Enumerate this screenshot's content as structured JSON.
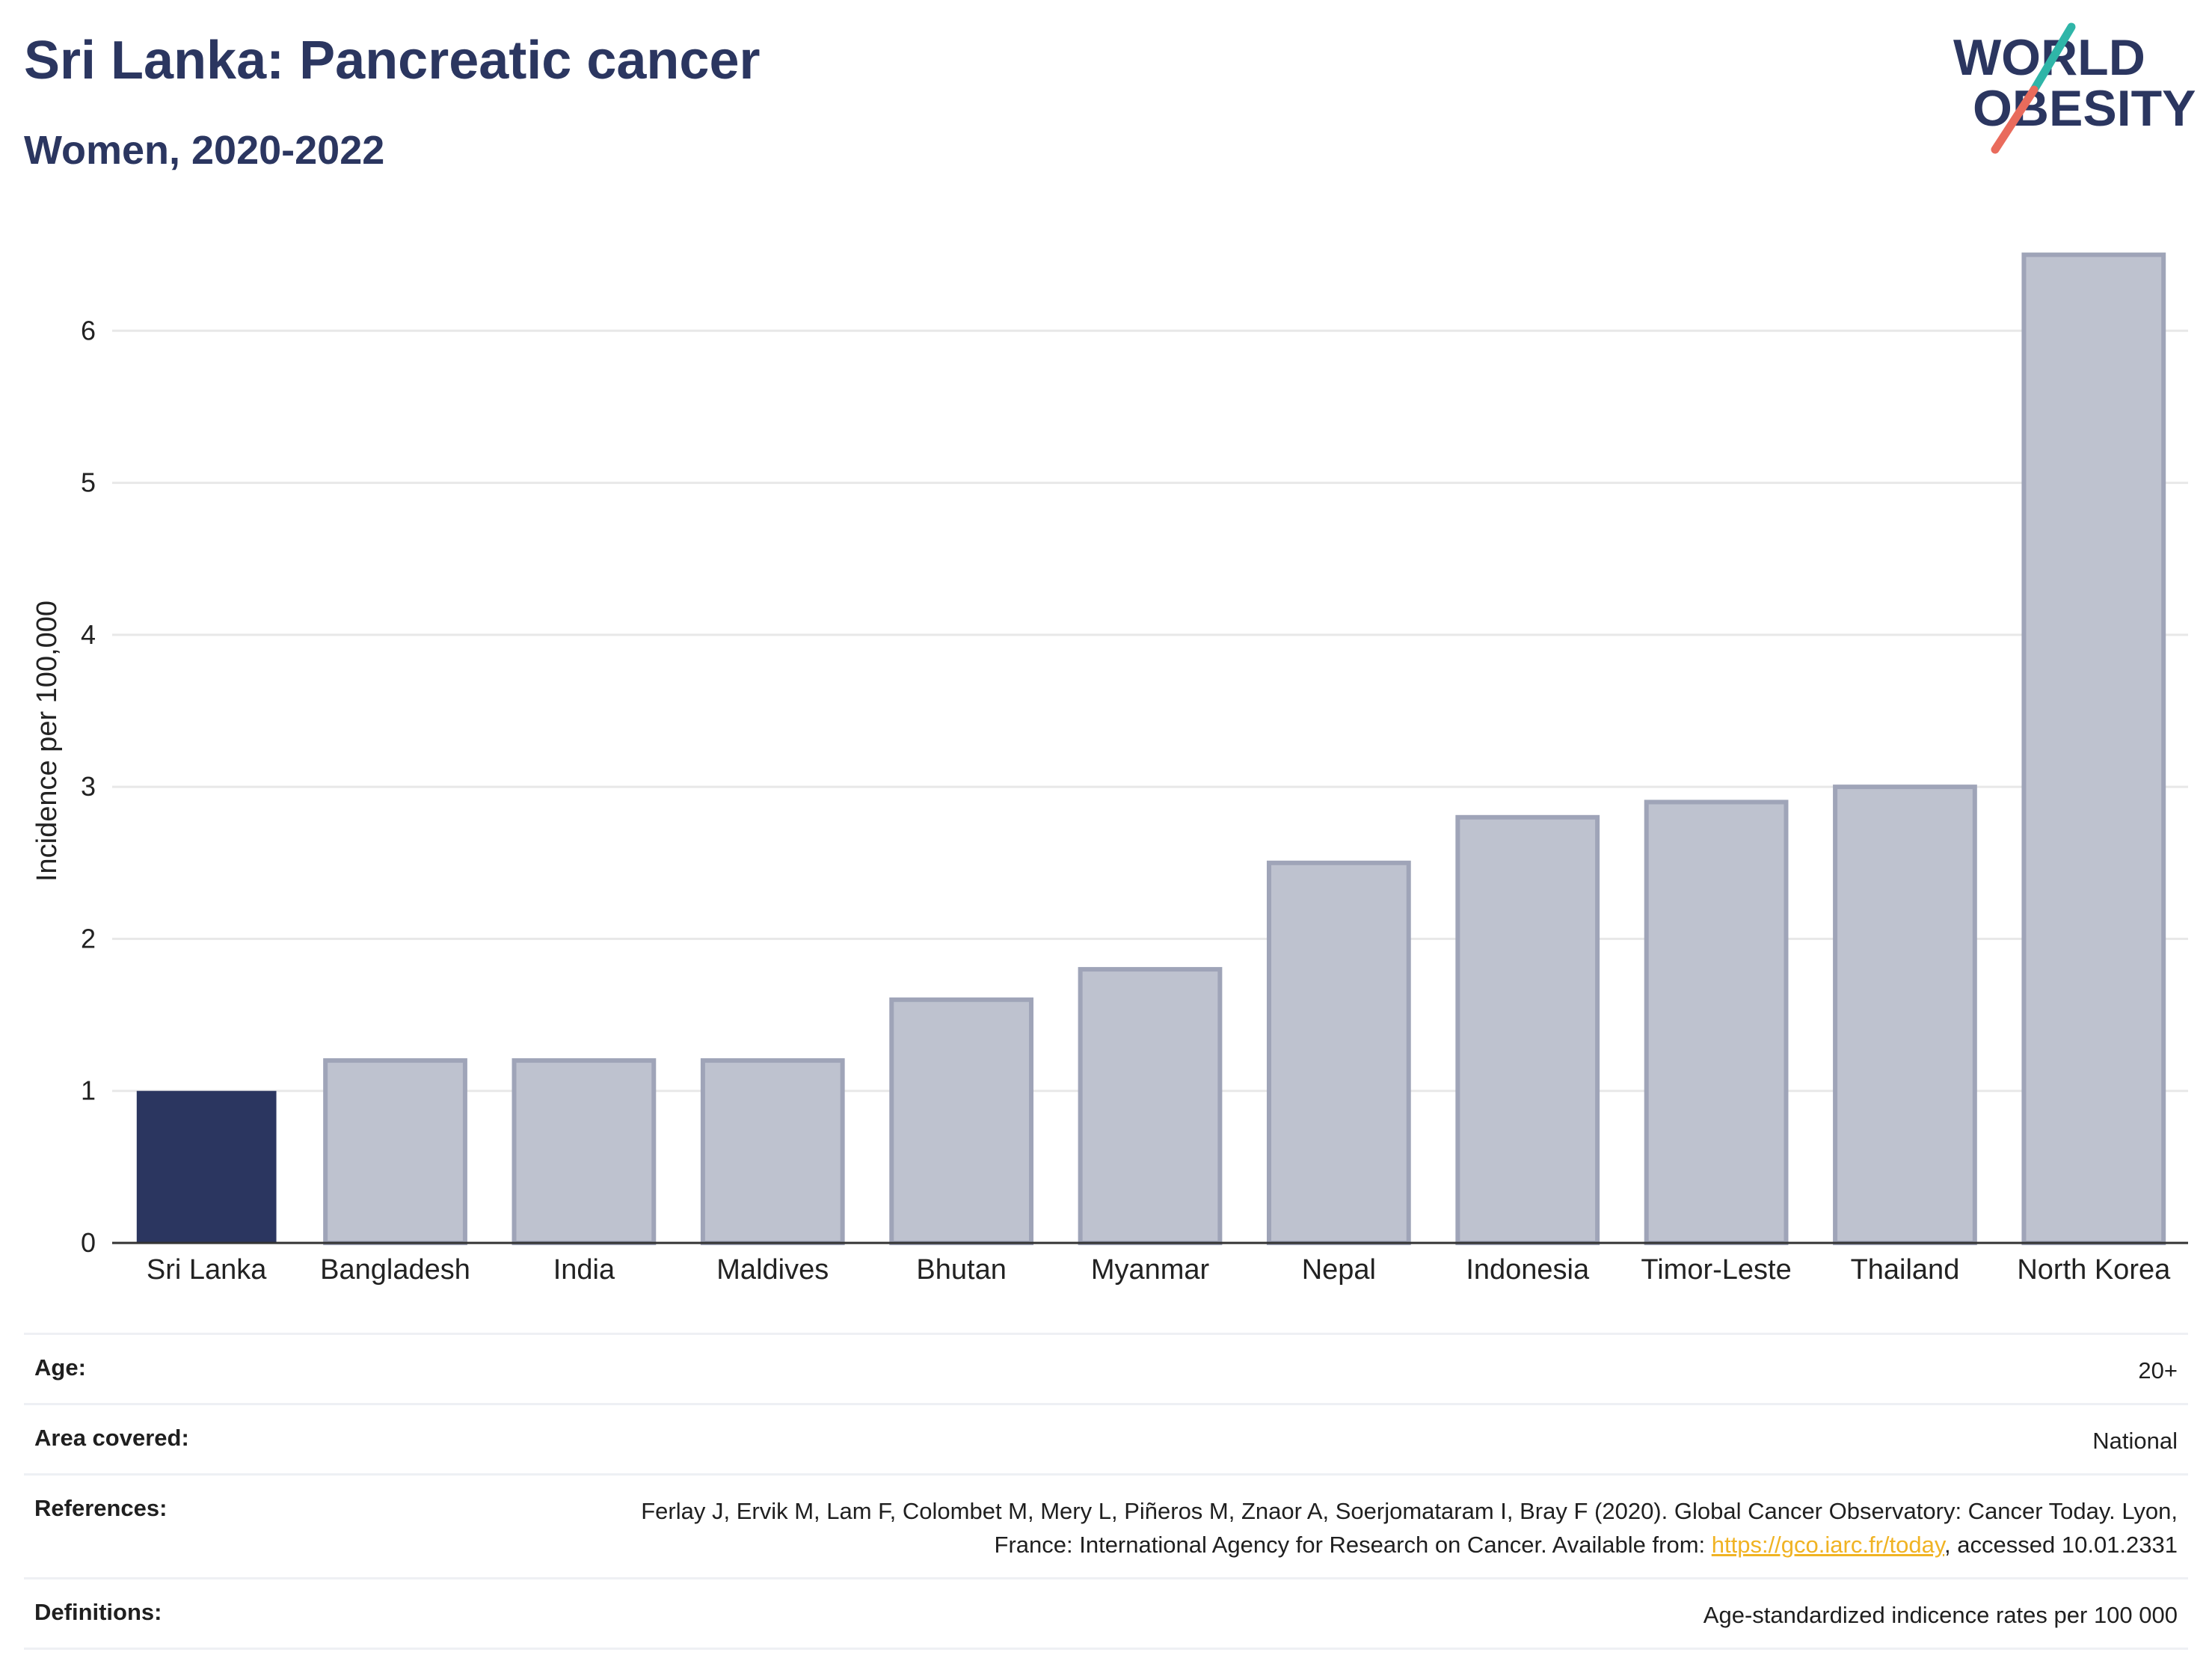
{
  "header": {
    "title": "Sri Lanka: Pancreatic cancer",
    "subtitle": "Women, 2020-2022"
  },
  "logo": {
    "line1": "WORLD",
    "line2": "OBESITY"
  },
  "chart_data": {
    "type": "bar",
    "categories": [
      "Sri Lanka",
      "Bangladesh",
      "India",
      "Maldives",
      "Bhutan",
      "Myanmar",
      "Nepal",
      "Indonesia",
      "Timor-Leste",
      "Thailand",
      "North Korea"
    ],
    "values": [
      1.0,
      1.2,
      1.2,
      1.2,
      1.6,
      1.8,
      2.5,
      2.8,
      2.9,
      3.0,
      6.5
    ],
    "highlight": "Sri Lanka",
    "ylabel": "Incidence per 100,000",
    "ylim": [
      0,
      6.7
    ],
    "yticks": [
      0,
      1,
      2,
      3,
      4,
      5,
      6
    ],
    "grid": true,
    "colors": {
      "highlight": "#2b3660",
      "other_fill": "#bec2cf",
      "other_stroke": "#9fa4b8",
      "grid": "#e8e8e8",
      "axis": "#333333"
    }
  },
  "info": {
    "age_label": "Age:",
    "age_value": "20+",
    "area_label": "Area covered:",
    "area_value": "National",
    "ref_label": "References:",
    "ref_text_1": "Ferlay J, Ervik M, Lam F, Colombet M, Mery L, Piñeros M, Znaor A, Soerjomataram I, Bray F (2020). Global Cancer Observatory: Cancer Today. Lyon, France: International Agency for Research on Cancer. Available from: ",
    "ref_link": "https://gco.iarc.fr/today",
    "ref_text_2": ", accessed 10.01.2331",
    "def_label": "Definitions:",
    "def_value": "Age-standardized indicence rates per 100 000"
  }
}
